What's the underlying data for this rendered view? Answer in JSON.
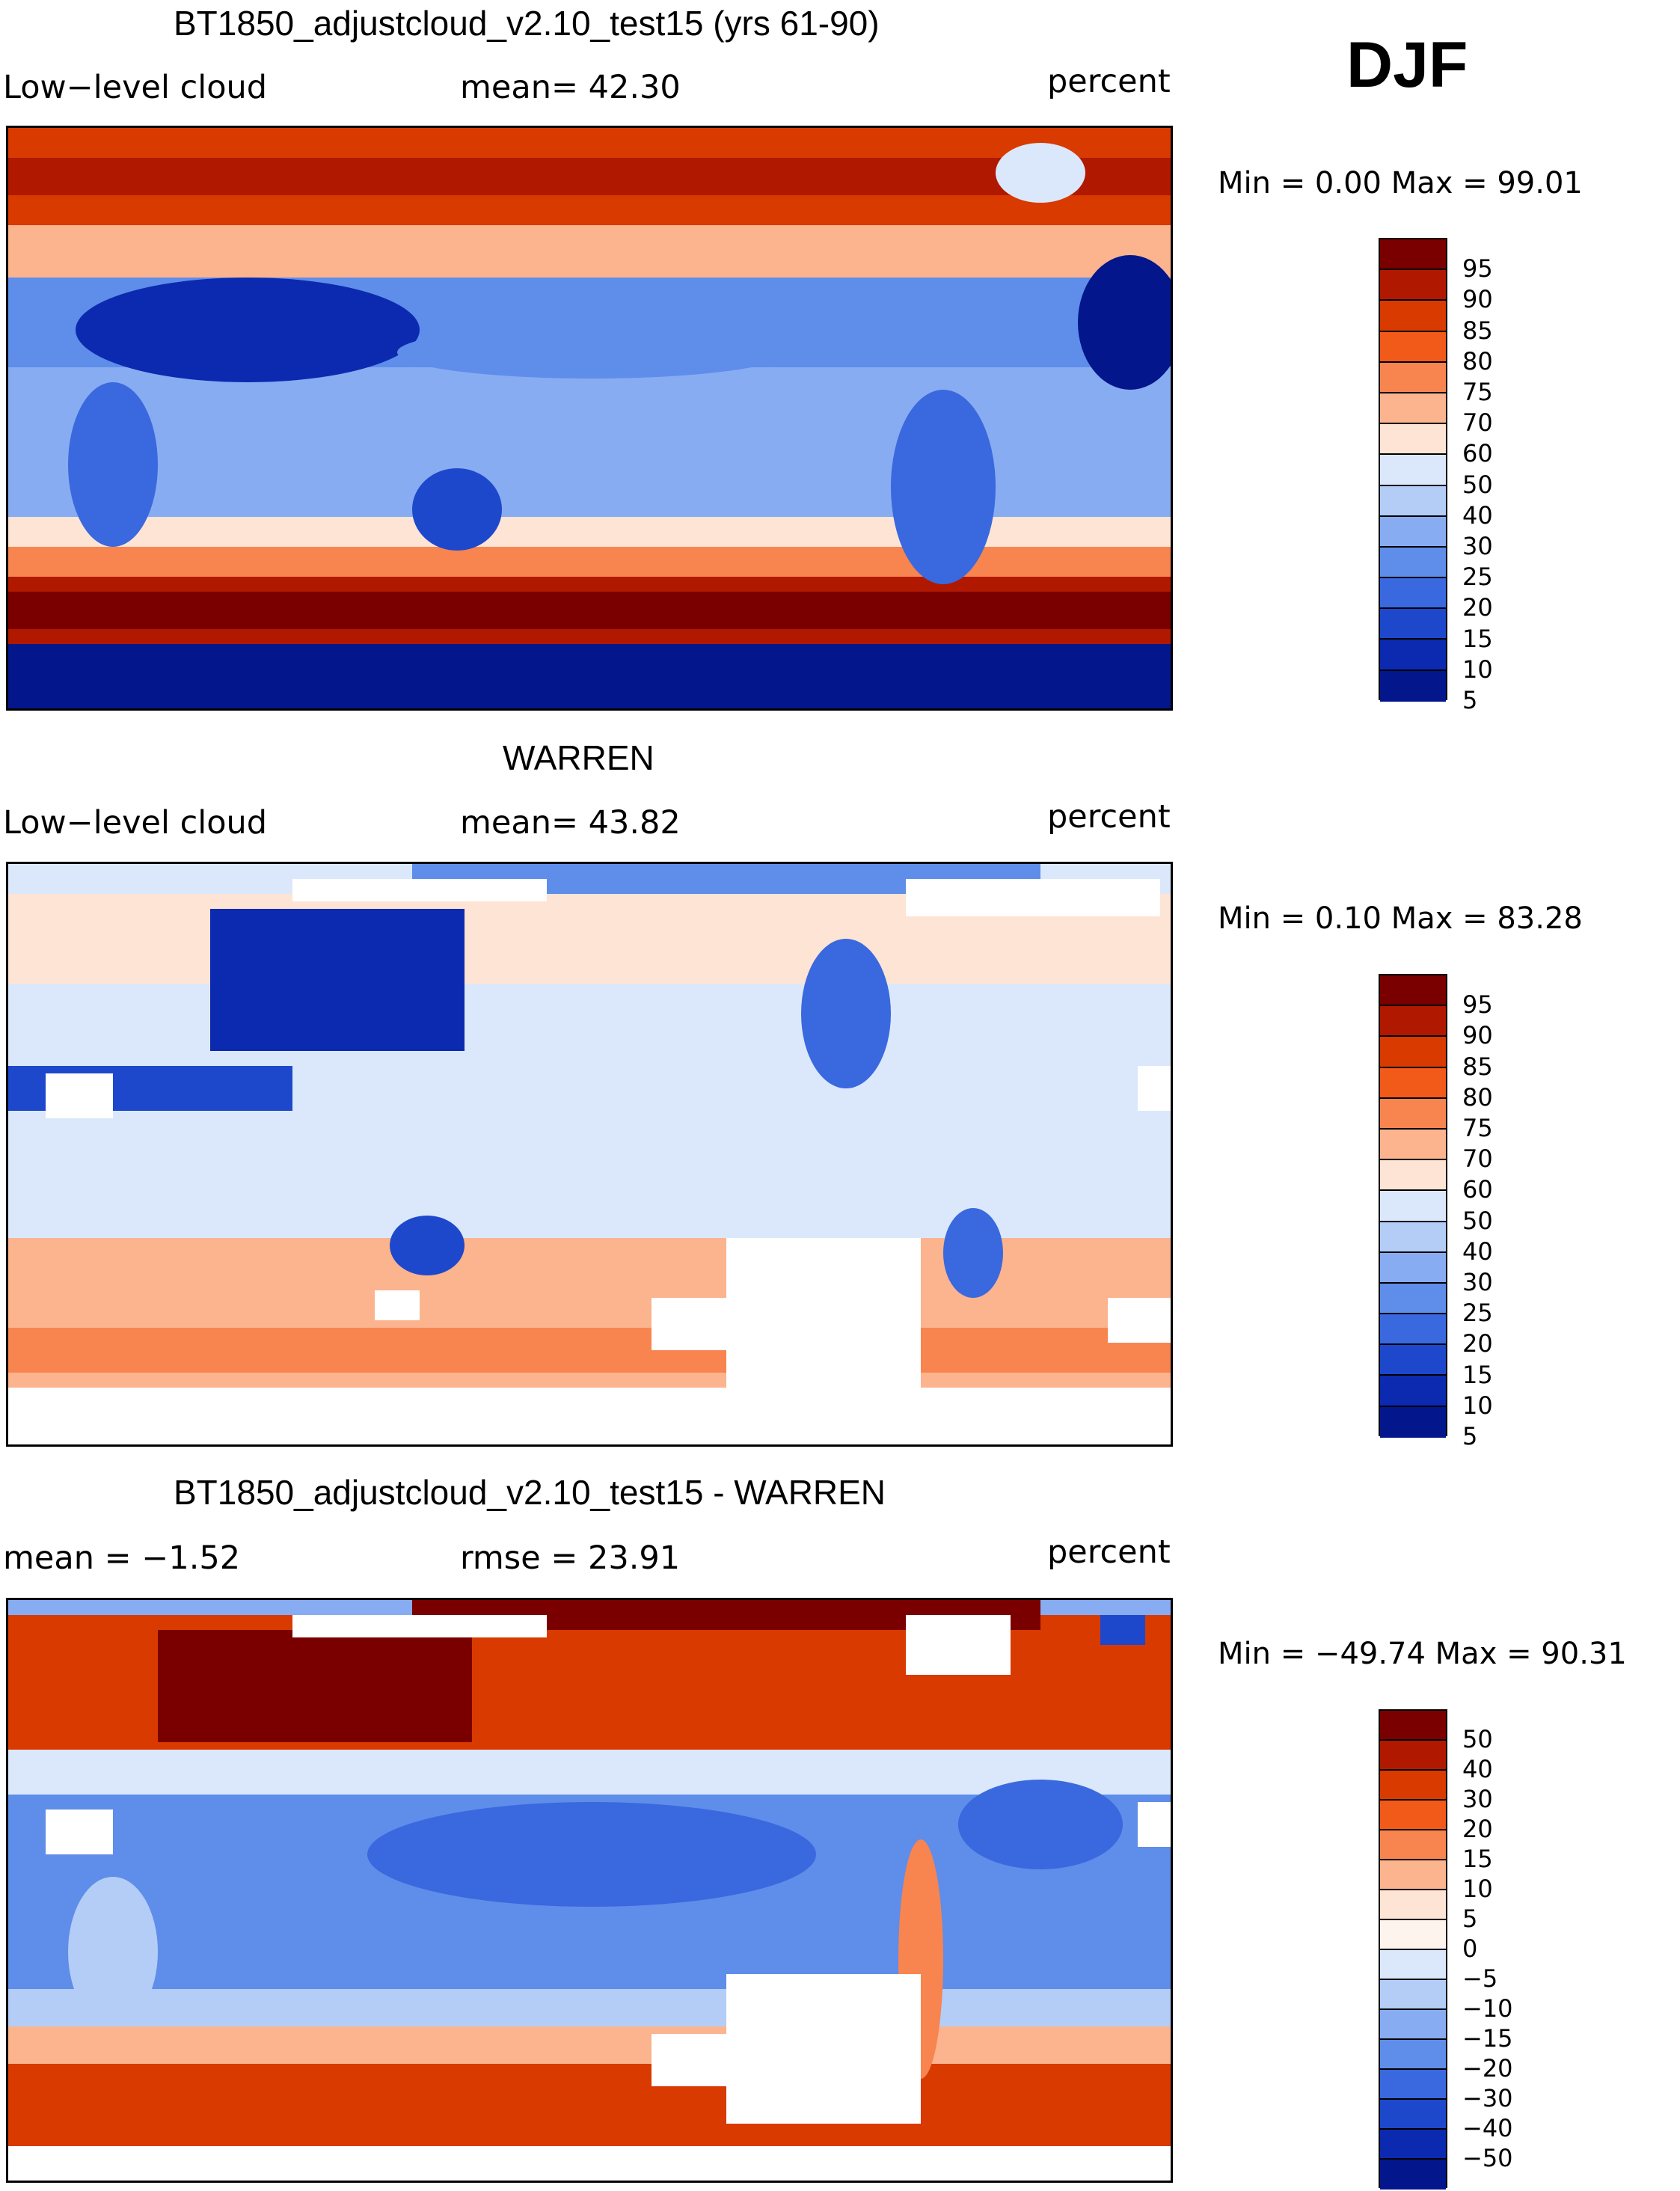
{
  "season": "DJF",
  "panels": [
    {
      "title": "BT1850_adjustcloud_v2.10_test15 (yrs 61-90)",
      "variable": "Low−level cloud",
      "stat": "mean=   42.30",
      "units": "percent",
      "minmax": "Min =     0.00 Max =   99.01",
      "colorbar_labels": [
        "95",
        "90",
        "85",
        "80",
        "75",
        "70",
        "60",
        "50",
        "40",
        "30",
        "25",
        "20",
        "15",
        "10",
        "5"
      ],
      "colors": [
        "#7a0000",
        "#b01800",
        "#d83a00",
        "#f25a1a",
        "#f88450",
        "#fbb48e",
        "#fde4d4",
        "#dbe8fb",
        "#b3cdf7",
        "#87acf1",
        "#5f8dea",
        "#3a68de",
        "#1e48cc",
        "#0c2ab0",
        "#03168c"
      ]
    },
    {
      "title": "WARREN",
      "variable": "Low−level cloud",
      "stat": "mean=   43.82",
      "units": "percent",
      "minmax": "Min =     0.10 Max =   83.28",
      "colorbar_labels": [
        "95",
        "90",
        "85",
        "80",
        "75",
        "70",
        "60",
        "50",
        "40",
        "30",
        "25",
        "20",
        "15",
        "10",
        "5"
      ],
      "colors": [
        "#7a0000",
        "#b01800",
        "#d83a00",
        "#f25a1a",
        "#f88450",
        "#fbb48e",
        "#fde4d4",
        "#dbe8fb",
        "#b3cdf7",
        "#87acf1",
        "#5f8dea",
        "#3a68de",
        "#1e48cc",
        "#0c2ab0",
        "#03168c"
      ]
    },
    {
      "title": "BT1850_adjustcloud_v2.10_test15 - WARREN",
      "variable": "mean =   −1.52",
      "stat": "rmse =   23.91",
      "units": "percent",
      "minmax": "Min = −49.74 Max =   90.31",
      "colorbar_labels": [
        "50",
        "40",
        "30",
        "20",
        "15",
        "10",
        "5",
        "0",
        "−5",
        "−10",
        "−15",
        "−20",
        "−30",
        "−40",
        "−50"
      ],
      "colors": [
        "#7a0000",
        "#b01800",
        "#d83a00",
        "#f25a1a",
        "#f88450",
        "#fbb48e",
        "#fde4d4",
        "#fdf4ee",
        "#dbe8fb",
        "#b3cdf7",
        "#87acf1",
        "#5f8dea",
        "#3a68de",
        "#1e48cc",
        "#0c2ab0",
        "#03168c"
      ]
    }
  ]
}
